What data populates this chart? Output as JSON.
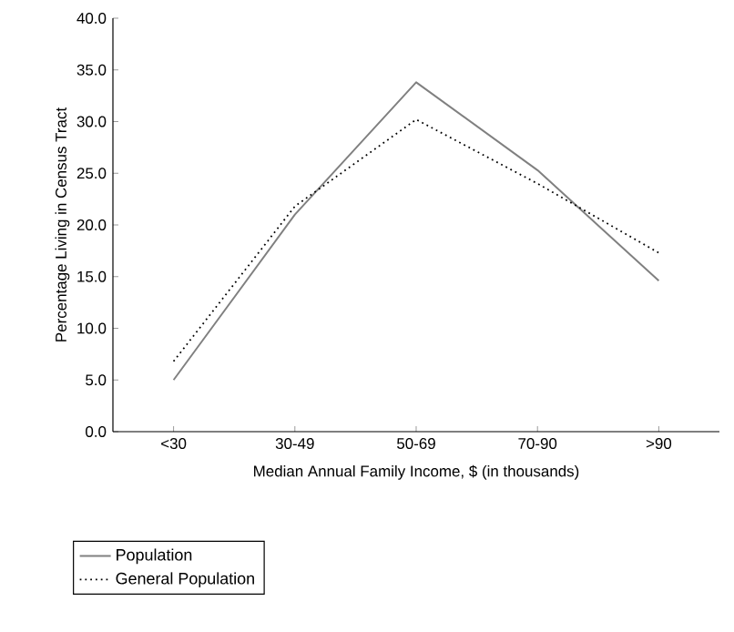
{
  "chart_data": {
    "type": "line",
    "xlabel": "Median Annual Family Income, $ (in thousands)",
    "ylabel": "Percentage Living in Census Tract",
    "categories": [
      "<30",
      "30-49",
      "50-69",
      "70-90",
      ">90"
    ],
    "series": [
      {
        "name": "Population",
        "color": "#808080",
        "line_style": "solid",
        "values": [
          5.0,
          21.0,
          33.8,
          25.3,
          14.6
        ]
      },
      {
        "name": "General Population",
        "color": "#000000",
        "line_style": "dotted",
        "values": [
          6.8,
          21.8,
          30.2,
          24.0,
          17.3
        ]
      }
    ],
    "ylim": [
      0,
      40
    ],
    "yticks": [
      {
        "value": 0,
        "label": "0.0"
      },
      {
        "value": 5,
        "label": "5.0"
      },
      {
        "value": 10,
        "label": "10.0"
      },
      {
        "value": 15,
        "label": "15.0"
      },
      {
        "value": 20,
        "label": "20.0"
      },
      {
        "value": 25,
        "label": "25.0"
      },
      {
        "value": 30,
        "label": "30.0"
      },
      {
        "value": 35,
        "label": "35.0"
      },
      {
        "value": 40,
        "label": "40.0"
      }
    ],
    "legend": "bottom",
    "grid": false
  }
}
